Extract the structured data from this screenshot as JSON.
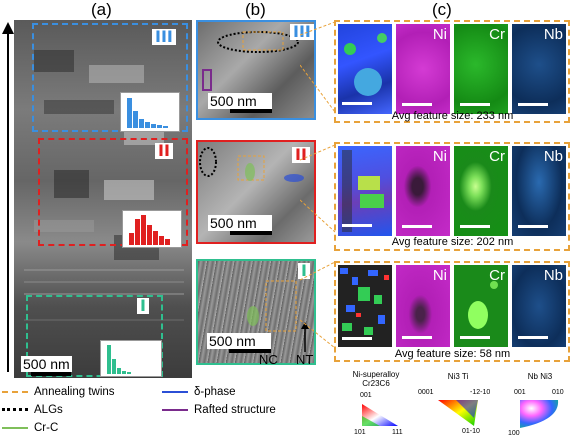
{
  "panels": {
    "a": "(a)",
    "b": "(b)",
    "c": "(c)"
  },
  "regions": {
    "r3": "III",
    "r2": "II",
    "r1": "I"
  },
  "scale_bars": {
    "a": "500 nm",
    "b": "500 nm"
  },
  "labels": {
    "nc": "NC",
    "nt": "NT"
  },
  "elements": {
    "ni": "Ni",
    "cr": "Cr",
    "nb": "Nb"
  },
  "captions": {
    "r3": "Avg feature size: 233 nm",
    "r2": "Avg feature size: 202 nm",
    "r1": "Avg feature size: 58 nm"
  },
  "legend": {
    "items": [
      {
        "label": "Annealing twins",
        "color": "#e8a23a",
        "style": "dashed"
      },
      {
        "label": "ALGs",
        "color": "#000000",
        "style": "dotted"
      },
      {
        "label": "Cr-C",
        "color": "#7fbf5a",
        "style": "solid"
      },
      {
        "label": "δ-phase",
        "color": "#2b4fd6",
        "style": "solid"
      },
      {
        "label": "Rafted structure",
        "color": "#7a2b8c",
        "style": "solid"
      }
    ]
  },
  "ipf_keys": [
    {
      "title": "Ni-superalloy\nCr23C6",
      "corners": [
        "001",
        "101",
        "111"
      ]
    },
    {
      "title": "Ni3 Ti",
      "corners": [
        "0001",
        "-12-10",
        "01-10"
      ]
    },
    {
      "title": "Nb Ni3",
      "corners": [
        "001",
        "010",
        "100"
      ]
    }
  ],
  "colors": {
    "iii": "#3a8fe0",
    "ii": "#e02020",
    "i": "#2fbf8f",
    "orange": "#e8a23a"
  }
}
